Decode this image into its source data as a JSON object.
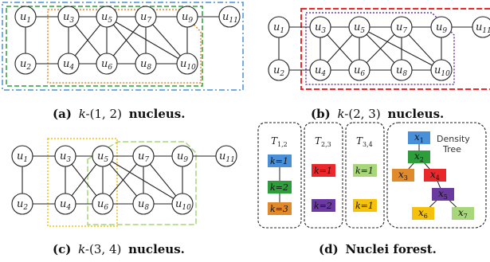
{
  "panels": {
    "a": {
      "caption_prefix": "(a)",
      "caption_k": "k-",
      "caption_param": "(1, 2)",
      "caption_word": "nucleus."
    },
    "b": {
      "caption_prefix": "(b)",
      "caption_k": "k-",
      "caption_param": "(2, 3)",
      "caption_word": "nucleus."
    },
    "c": {
      "caption_prefix": "(c)",
      "caption_k": "k-",
      "caption_param": "(3, 4)",
      "caption_word": "nucleus."
    },
    "d": {
      "caption_prefix": "(d)",
      "caption_word": "Nuclei forest."
    }
  },
  "graph": {
    "nodes": [
      {
        "id": "u1",
        "letter": "u",
        "sub": "1"
      },
      {
        "id": "u2",
        "letter": "u",
        "sub": "2"
      },
      {
        "id": "u3",
        "letter": "u",
        "sub": "3"
      },
      {
        "id": "u4",
        "letter": "u",
        "sub": "4"
      },
      {
        "id": "u5",
        "letter": "u",
        "sub": "5"
      },
      {
        "id": "u6",
        "letter": "u",
        "sub": "6"
      },
      {
        "id": "u7",
        "letter": "u",
        "sub": "7"
      },
      {
        "id": "u8",
        "letter": "u",
        "sub": "8"
      },
      {
        "id": "u9",
        "letter": "u",
        "sub": "9"
      },
      {
        "id": "u10",
        "letter": "u",
        "sub": "10"
      },
      {
        "id": "u11",
        "letter": "u",
        "sub": "11"
      }
    ],
    "edges": [
      [
        "u1",
        "u3"
      ],
      [
        "u1",
        "u2"
      ],
      [
        "u2",
        "u4"
      ],
      [
        "u3",
        "u5"
      ],
      [
        "u3",
        "u4"
      ],
      [
        "u3",
        "u6"
      ],
      [
        "u4",
        "u5"
      ],
      [
        "u4",
        "u6"
      ],
      [
        "u5",
        "u6"
      ],
      [
        "u5",
        "u7"
      ],
      [
        "u5",
        "u8"
      ],
      [
        "u6",
        "u7"
      ],
      [
        "u6",
        "u8"
      ],
      [
        "u7",
        "u8"
      ],
      [
        "u7",
        "u9"
      ],
      [
        "u7",
        "u10"
      ],
      [
        "u8",
        "u10"
      ],
      [
        "u5",
        "u10"
      ],
      [
        "u9",
        "u10"
      ],
      [
        "u9",
        "u11"
      ]
    ]
  },
  "forest": {
    "trees": [
      {
        "name": "T",
        "sub": "1,2",
        "boxes": [
          {
            "label": "k=1",
            "color": "#4a90d9"
          },
          {
            "label": "k=2",
            "color": "#2e9d3c"
          },
          {
            "label": "k=3",
            "color": "#e08a2c"
          }
        ]
      },
      {
        "name": "T",
        "sub": "2,3",
        "boxes": [
          {
            "label": "k=1",
            "color": "#e8282b"
          },
          {
            "label": "k=2",
            "color": "#6a3aa0"
          }
        ]
      },
      {
        "name": "T",
        "sub": "3,4",
        "boxes": [
          {
            "label": "k=1",
            "color": "#a8d67a"
          },
          {
            "label": "k=1",
            "color": "#f4c20d"
          }
        ]
      }
    ],
    "density_tree": {
      "title_line1": "Density",
      "title_line2": "Tree",
      "nodes": [
        {
          "letter": "x",
          "sub": "1",
          "color": "#4a90d9"
        },
        {
          "letter": "x",
          "sub": "2",
          "color": "#2e9d3c"
        },
        {
          "letter": "x",
          "sub": "3",
          "color": "#e08a2c"
        },
        {
          "letter": "x",
          "sub": "4",
          "color": "#e8282b"
        },
        {
          "letter": "x",
          "sub": "5",
          "color": "#6a3aa0"
        },
        {
          "letter": "x",
          "sub": "6",
          "color": "#f4c20d"
        },
        {
          "letter": "x",
          "sub": "7",
          "color": "#a8d67a"
        }
      ],
      "edges": [
        [
          "x1",
          "x2"
        ],
        [
          "x2",
          "x3"
        ],
        [
          "x2",
          "x4"
        ],
        [
          "x4",
          "x5"
        ],
        [
          "x5",
          "x6"
        ],
        [
          "x5",
          "x7"
        ]
      ]
    }
  },
  "colors": {
    "blue_dash": "#4a90d9",
    "green_dash": "#2e9d3c",
    "orange_dot": "#e08a2c",
    "red_dash": "#e8282b",
    "purple_dot": "#6a3aa0",
    "yellow_dot": "#f4c20d",
    "lightgreen_dash": "#a8d67a"
  }
}
